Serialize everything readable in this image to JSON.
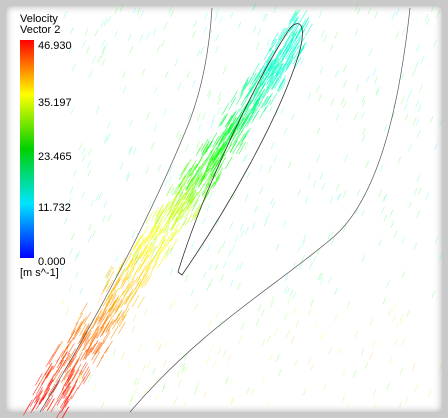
{
  "legend": {
    "title": "Velocity",
    "subtitle": "Vector 2",
    "ticks": [
      "46.930",
      "35.197",
      "23.465",
      "11.732",
      "0.000"
    ],
    "unit": "[m s^-1]"
  }
}
